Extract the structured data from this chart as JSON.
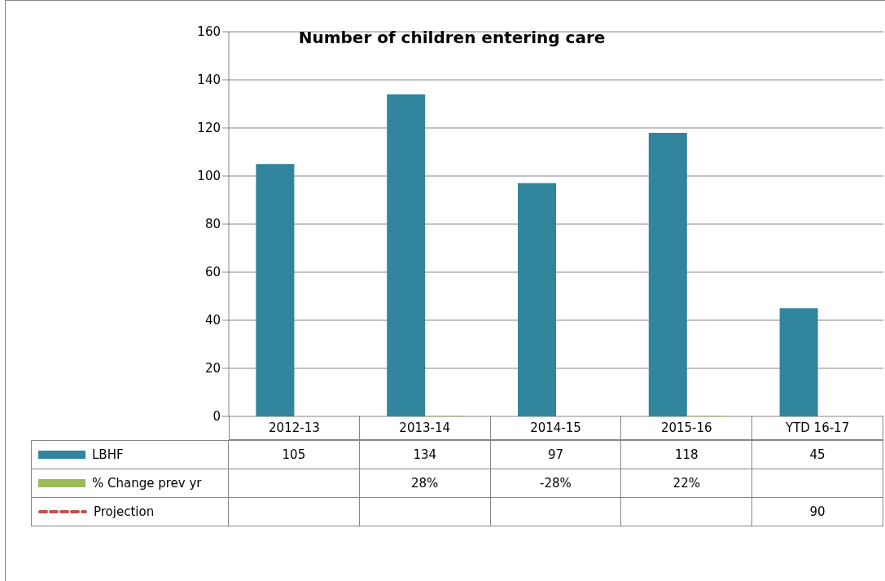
{
  "chart_data": {
    "type": "bar",
    "title": "Number of children entering care",
    "categories": [
      "2012-13",
      "2013-14",
      "2014-15",
      "2015-16",
      "YTD 16-17"
    ],
    "series": [
      {
        "name": "LBHF",
        "color": "#31859c",
        "values": [
          105,
          134,
          97,
          118,
          45
        ],
        "value_labels": [
          "105",
          "134",
          "97",
          "118",
          "45"
        ]
      },
      {
        "name": "% Change prev yr",
        "color": "#9bbb59",
        "values": [
          null,
          0.28,
          null,
          0.22,
          null
        ],
        "value_labels": [
          null,
          "28%",
          "-28%",
          "22%",
          null
        ]
      },
      {
        "name": "Projection",
        "type": "line",
        "color": "#c0504d",
        "line_style": "dashed",
        "values": [
          null,
          null,
          null,
          null,
          null
        ],
        "value_labels": [
          null,
          null,
          null,
          null,
          "90"
        ]
      }
    ],
    "ylim": [
      0,
      160
    ],
    "yticks": [
      0,
      20,
      40,
      60,
      80,
      100,
      120,
      140,
      160
    ],
    "grid": "y",
    "legend": "bottom left",
    "data_labels": true
  }
}
